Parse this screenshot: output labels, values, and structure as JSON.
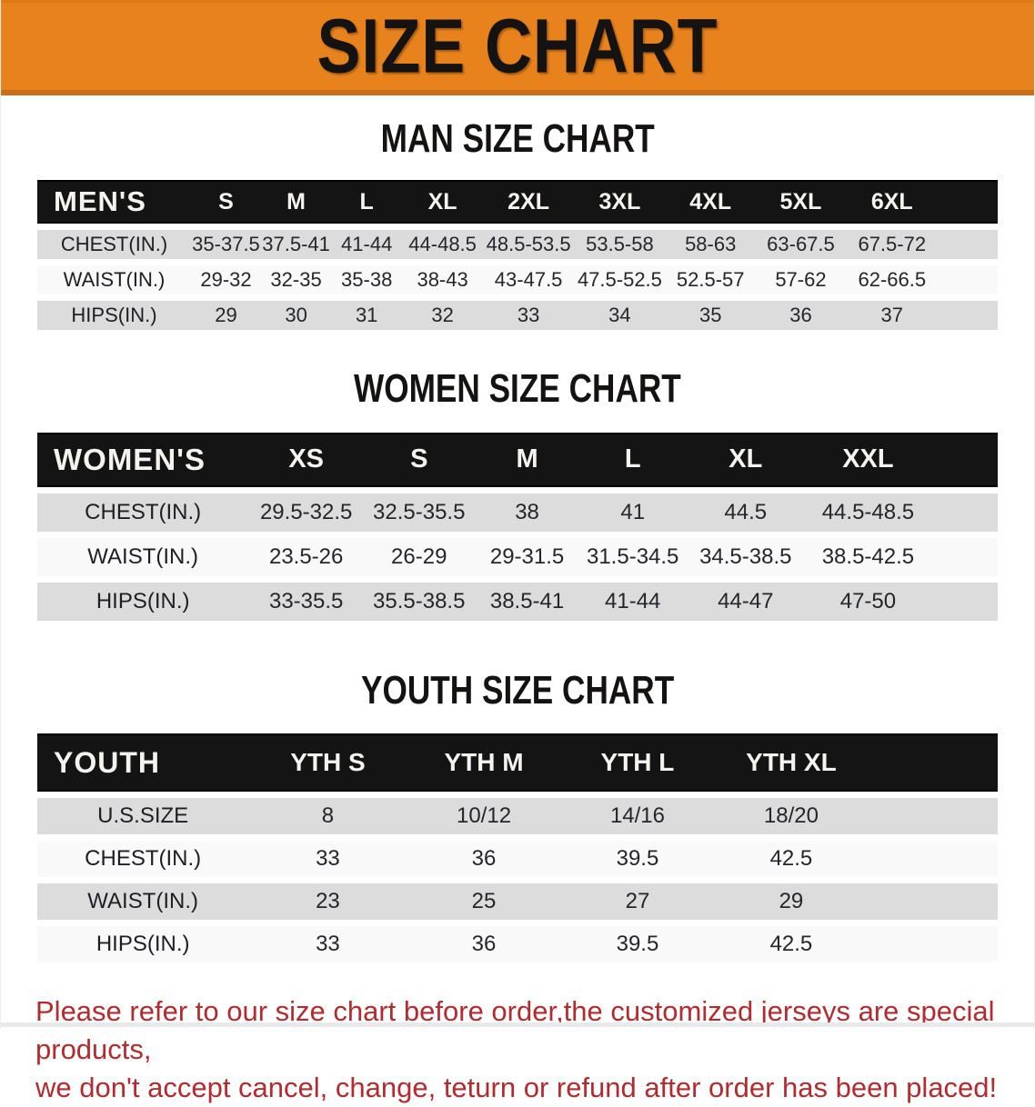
{
  "banner": {
    "title": "SIZE CHART"
  },
  "colors": {
    "banner_bg": "#e8821c",
    "table_header_bg": "#141414",
    "row_gray": "#dcdcdc",
    "row_white": "#f9f9f9",
    "footer_red": "#b32b2f"
  },
  "tables": {
    "men": {
      "title": "MAN SIZE CHART",
      "corner": "MEN'S",
      "sizes": [
        "S",
        "M",
        "L",
        "XL",
        "2XL",
        "3XL",
        "4XL",
        "5XL",
        "6XL"
      ],
      "cols": [
        "16%",
        "7.3%",
        "7.3%",
        "7.4%",
        "8.4%",
        "9.5%",
        "9.5%",
        "9.4%",
        "9.4%",
        "9.6%",
        "6.2%"
      ],
      "rows": [
        {
          "label": "CHEST(IN.)",
          "values": [
            "35-37.5",
            "37.5-41",
            "41-44",
            "44-48.5",
            "48.5-53.5",
            "53.5-58",
            "58-63",
            "63-67.5",
            "67.5-72"
          ]
        },
        {
          "label": "WAIST(IN.)",
          "values": [
            "29-32",
            "32-35",
            "35-38",
            "38-43",
            "43-47.5",
            "47.5-52.5",
            "52.5-57",
            "57-62",
            "62-66.5"
          ]
        },
        {
          "label": "HIPS(IN.)",
          "values": [
            "29",
            "30",
            "31",
            "32",
            "33",
            "34",
            "35",
            "36",
            "37"
          ]
        }
      ]
    },
    "women": {
      "title": "WOMEN SIZE CHART",
      "corner": "WOMEN'S",
      "sizes": [
        "XS",
        "S",
        "M",
        "L",
        "XL",
        "XXL"
      ],
      "cols": [
        "22%",
        "12%",
        "11.5%",
        "11%",
        "11%",
        "12.5%",
        "13%",
        "7%"
      ],
      "rows": [
        {
          "label": "CHEST(IN.)",
          "values": [
            "29.5-32.5",
            "32.5-35.5",
            "38",
            "41",
            "44.5",
            "44.5-48.5"
          ]
        },
        {
          "label": "WAIST(IN.)",
          "values": [
            "23.5-26",
            "26-29",
            "29-31.5",
            "31.5-34.5",
            "34.5-38.5",
            "38.5-42.5"
          ]
        },
        {
          "label": "HIPS(IN.)",
          "values": [
            "33-35.5",
            "35.5-38.5",
            "38.5-41",
            "41-44",
            "44-47",
            "47-50"
          ]
        }
      ]
    },
    "youth": {
      "title": "YOUTH SIZE CHART",
      "corner": "YOUTH",
      "sizes": [
        "YTH S",
        "YTH M",
        "YTH L",
        "YTH XL"
      ],
      "cols": [
        "22%",
        "16.5%",
        "16%",
        "16%",
        "16%",
        "13.5%"
      ],
      "rows": [
        {
          "label": "U.S.SIZE",
          "values": [
            "8",
            "10/12",
            "14/16",
            "18/20"
          ]
        },
        {
          "label": "CHEST(IN.)",
          "values": [
            "33",
            "36",
            "39.5",
            "42.5"
          ]
        },
        {
          "label": "WAIST(IN.)",
          "values": [
            "23",
            "25",
            "27",
            "29"
          ]
        },
        {
          "label": "HIPS(IN.)",
          "values": [
            "33",
            "36",
            "39.5",
            "42.5"
          ]
        }
      ]
    }
  },
  "footer": {
    "line1": "Please refer to our size chart before order,the customized jerseys are special products,",
    "line2": "we don't accept cancel, change, teturn or refund after order has been placed!"
  }
}
